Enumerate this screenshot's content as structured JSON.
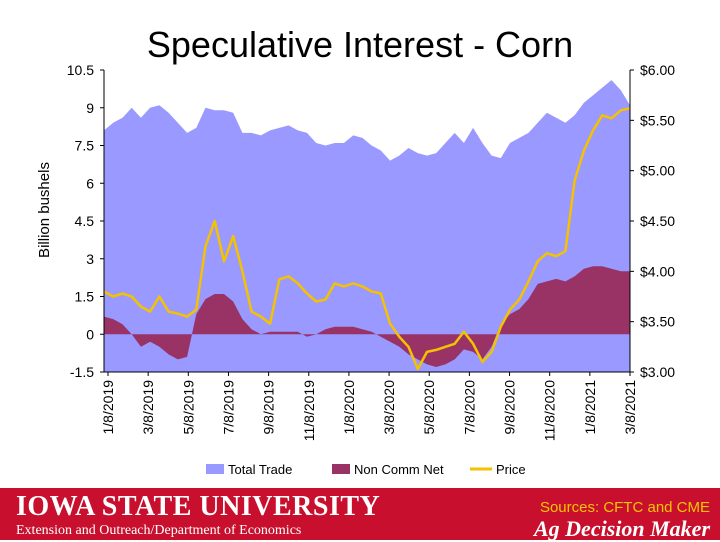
{
  "footer": {
    "university": "IOWA STATE UNIVERSITY",
    "department": "Extension and Outreach/Department of Economics",
    "sources": "Sources: CFTC and CME",
    "brand": "Ag Decision Maker"
  },
  "colors": {
    "total_trade": "#9999ff",
    "non_comm_net": "#993366",
    "price": "#f5c200",
    "footer_background": "#c8102e"
  },
  "chart_data": {
    "type": "area",
    "title": "Speculative Interest - Corn",
    "ylabel": "Billion bushels",
    "ylim": [
      -1.5,
      10.5
    ],
    "y_ticks": [
      "10.5",
      "9",
      "7.5",
      "6",
      "4.5",
      "3",
      "1.5",
      "0",
      "-1.5"
    ],
    "y2lim": [
      3.0,
      6.0
    ],
    "y2_ticks": [
      "$6.00",
      "$5.50",
      "$5.00",
      "$4.50",
      "$4.00",
      "$3.50",
      "$3.00"
    ],
    "x_ticks": [
      "1/8/2019",
      "3/8/2019",
      "5/8/2019",
      "7/8/2019",
      "9/8/2019",
      "11/8/2019",
      "1/8/2020",
      "3/8/2020",
      "5/8/2020",
      "7/8/2020",
      "9/8/2020",
      "11/8/2020",
      "1/8/2021",
      "3/8/2021"
    ],
    "legend_position": "bottom",
    "grid": false,
    "x": [
      "1/8/2019",
      "1/22/2019",
      "2/5/2019",
      "2/19/2019",
      "3/5/2019",
      "3/19/2019",
      "4/2/2019",
      "4/16/2019",
      "4/30/2019",
      "5/14/2019",
      "5/28/2019",
      "6/11/2019",
      "6/25/2019",
      "7/9/2019",
      "7/23/2019",
      "8/6/2019",
      "8/20/2019",
      "9/3/2019",
      "9/17/2019",
      "10/1/2019",
      "10/15/2019",
      "10/29/2019",
      "11/12/2019",
      "11/26/2019",
      "12/10/2019",
      "12/24/2019",
      "1/7/2020",
      "1/21/2020",
      "2/4/2020",
      "2/18/2020",
      "3/3/2020",
      "3/17/2020",
      "3/31/2020",
      "4/14/2020",
      "4/28/2020",
      "5/12/2020",
      "5/26/2020",
      "6/9/2020",
      "6/23/2020",
      "7/7/2020",
      "7/21/2020",
      "8/4/2020",
      "8/18/2020",
      "9/1/2020",
      "9/15/2020",
      "9/29/2020",
      "10/13/2020",
      "10/27/2020",
      "11/10/2020",
      "11/24/2020",
      "12/8/2020",
      "12/22/2020",
      "1/5/2021",
      "1/19/2021",
      "2/2/2021",
      "2/16/2021",
      "3/2/2021",
      "3/16/2021"
    ],
    "series": [
      {
        "name": "Total Trade",
        "axis": "left",
        "values": [
          8.1,
          8.4,
          8.6,
          9.0,
          8.6,
          9.0,
          9.1,
          8.8,
          8.4,
          8.0,
          8.2,
          9.0,
          8.9,
          8.9,
          8.8,
          8.0,
          8.0,
          7.9,
          8.1,
          8.2,
          8.3,
          8.1,
          8.0,
          7.6,
          7.5,
          7.6,
          7.6,
          7.9,
          7.8,
          7.5,
          7.3,
          6.9,
          7.1,
          7.4,
          7.2,
          7.1,
          7.2,
          7.6,
          8.0,
          7.6,
          8.2,
          7.6,
          7.1,
          7.0,
          7.6,
          7.8,
          8.0,
          8.4,
          8.8,
          8.6,
          8.4,
          8.7,
          9.2,
          9.5,
          9.8,
          10.1,
          9.7,
          9.1
        ]
      },
      {
        "name": "Non Comm Net",
        "axis": "left",
        "values": [
          0.7,
          0.6,
          0.4,
          0.0,
          -0.5,
          -0.3,
          -0.5,
          -0.8,
          -1.0,
          -0.9,
          0.8,
          1.4,
          1.6,
          1.6,
          1.3,
          0.6,
          0.2,
          0.0,
          0.1,
          0.1,
          0.1,
          0.1,
          -0.1,
          0.0,
          0.2,
          0.3,
          0.3,
          0.3,
          0.2,
          0.1,
          -0.1,
          -0.3,
          -0.5,
          -0.8,
          -1.0,
          -1.2,
          -1.3,
          -1.2,
          -1.0,
          -0.6,
          -0.7,
          -1.0,
          -0.5,
          0.4,
          0.8,
          1.0,
          1.4,
          2.0,
          2.1,
          2.2,
          2.1,
          2.3,
          2.6,
          2.7,
          2.7,
          2.6,
          2.5,
          2.5
        ]
      },
      {
        "name": "Price",
        "axis": "right",
        "values": [
          3.8,
          3.75,
          3.78,
          3.75,
          3.65,
          3.6,
          3.75,
          3.6,
          3.58,
          3.55,
          3.62,
          4.25,
          4.5,
          4.1,
          4.35,
          4.0,
          3.6,
          3.55,
          3.48,
          3.92,
          3.95,
          3.88,
          3.78,
          3.7,
          3.72,
          3.88,
          3.85,
          3.88,
          3.85,
          3.8,
          3.78,
          3.48,
          3.35,
          3.25,
          3.03,
          3.2,
          3.22,
          3.25,
          3.28,
          3.4,
          3.28,
          3.1,
          3.2,
          3.45,
          3.62,
          3.72,
          3.9,
          4.1,
          4.18,
          4.15,
          4.2,
          4.9,
          5.2,
          5.4,
          5.55,
          5.52,
          5.6,
          5.62
        ]
      }
    ]
  }
}
